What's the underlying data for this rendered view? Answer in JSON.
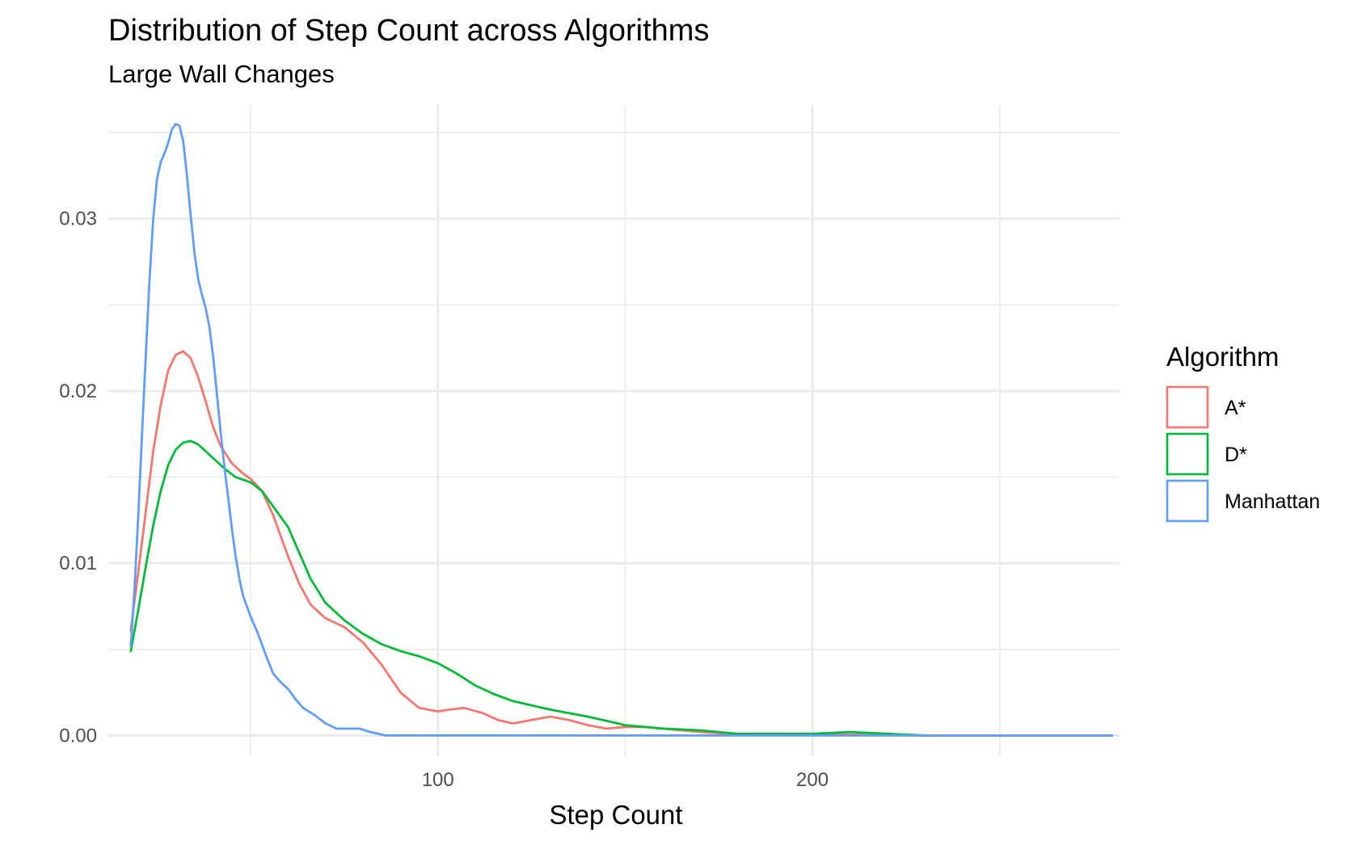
{
  "chart_data": {
    "type": "line",
    "title": "Distribution of Step Count across Algorithms",
    "subtitle": "Large Wall Changes",
    "xlabel": "Step Count",
    "ylabel": "",
    "xlim": [
      12,
      282
    ],
    "ylim": [
      -0.0012,
      0.0366
    ],
    "x_ticks": [
      100,
      200
    ],
    "x_tick_labels": [
      "100",
      "200"
    ],
    "x_minor_ticks": [
      50,
      150,
      250
    ],
    "y_ticks": [
      0.0,
      0.01,
      0.02,
      0.03
    ],
    "y_tick_labels": [
      "0.00",
      "0.01",
      "0.02",
      "0.03"
    ],
    "y_minor_ticks": [
      0.005,
      0.015,
      0.025,
      0.035
    ],
    "grid": true,
    "legend": {
      "title": "Algorithm",
      "position": "right"
    },
    "series": [
      {
        "name": "A*",
        "color": "#F8766D",
        "points": [
          [
            18,
            0.0061
          ],
          [
            20,
            0.0095
          ],
          [
            22,
            0.013
          ],
          [
            24,
            0.0165
          ],
          [
            26,
            0.0192
          ],
          [
            28,
            0.0212
          ],
          [
            30,
            0.0221
          ],
          [
            32,
            0.0223
          ],
          [
            34,
            0.0219
          ],
          [
            36,
            0.0208
          ],
          [
            38,
            0.0194
          ],
          [
            40,
            0.0179
          ],
          [
            42,
            0.0168
          ],
          [
            45,
            0.0158
          ],
          [
            48,
            0.0152
          ],
          [
            50,
            0.0149
          ],
          [
            53,
            0.0142
          ],
          [
            56,
            0.0128
          ],
          [
            58,
            0.0116
          ],
          [
            60,
            0.0104
          ],
          [
            63,
            0.0088
          ],
          [
            66,
            0.0076
          ],
          [
            70,
            0.0068
          ],
          [
            75,
            0.0063
          ],
          [
            80,
            0.0054
          ],
          [
            85,
            0.0041
          ],
          [
            90,
            0.0025
          ],
          [
            95,
            0.0016
          ],
          [
            100,
            0.0014
          ],
          [
            103,
            0.0015
          ],
          [
            107,
            0.0016
          ],
          [
            112,
            0.0013
          ],
          [
            116,
            0.0009
          ],
          [
            120,
            0.0007
          ],
          [
            125,
            0.0009
          ],
          [
            130,
            0.0011
          ],
          [
            135,
            0.0009
          ],
          [
            140,
            0.0006
          ],
          [
            145,
            0.0004
          ],
          [
            150,
            0.0005
          ],
          [
            155,
            0.0005
          ],
          [
            160,
            0.0004
          ],
          [
            165,
            0.0003
          ],
          [
            170,
            0.0002
          ],
          [
            178,
            0.0001
          ],
          [
            190,
            5e-05
          ],
          [
            210,
            5e-05
          ],
          [
            230,
            0.0
          ],
          [
            250,
            0.0
          ],
          [
            270,
            0.0
          ],
          [
            280,
            0.0
          ]
        ]
      },
      {
        "name": "D*",
        "color": "#00BA38",
        "points": [
          [
            18,
            0.0049
          ],
          [
            20,
            0.0073
          ],
          [
            22,
            0.0098
          ],
          [
            24,
            0.0122
          ],
          [
            26,
            0.0142
          ],
          [
            28,
            0.0157
          ],
          [
            30,
            0.0166
          ],
          [
            32,
            0.017
          ],
          [
            34,
            0.0171
          ],
          [
            36,
            0.0169
          ],
          [
            38,
            0.0165
          ],
          [
            40,
            0.0161
          ],
          [
            43,
            0.0155
          ],
          [
            46,
            0.015
          ],
          [
            50,
            0.0147
          ],
          [
            53,
            0.0142
          ],
          [
            56,
            0.0133
          ],
          [
            60,
            0.0121
          ],
          [
            63,
            0.0106
          ],
          [
            66,
            0.0091
          ],
          [
            70,
            0.0077
          ],
          [
            75,
            0.0067
          ],
          [
            80,
            0.0059
          ],
          [
            85,
            0.0053
          ],
          [
            90,
            0.0049
          ],
          [
            95,
            0.0046
          ],
          [
            100,
            0.0042
          ],
          [
            105,
            0.0036
          ],
          [
            110,
            0.0029
          ],
          [
            115,
            0.0024
          ],
          [
            120,
            0.002
          ],
          [
            130,
            0.0015
          ],
          [
            140,
            0.0011
          ],
          [
            150,
            0.0006
          ],
          [
            160,
            0.0004
          ],
          [
            170,
            0.0003
          ],
          [
            180,
            0.0001
          ],
          [
            190,
            0.0001
          ],
          [
            200,
            0.0001
          ],
          [
            210,
            0.0002
          ],
          [
            220,
            0.0001
          ],
          [
            230,
            0.0
          ],
          [
            250,
            0.0
          ],
          [
            270,
            0.0
          ],
          [
            280,
            0.0
          ]
        ]
      },
      {
        "name": "Manhattan",
        "color": "#619CFF",
        "points": [
          [
            18,
            0.0052
          ],
          [
            19,
            0.0085
          ],
          [
            20,
            0.0128
          ],
          [
            21,
            0.0175
          ],
          [
            22,
            0.022
          ],
          [
            23,
            0.0265
          ],
          [
            24,
            0.03
          ],
          [
            25,
            0.0323
          ],
          [
            26,
            0.0333
          ],
          [
            27,
            0.0338
          ],
          [
            28,
            0.0344
          ],
          [
            29,
            0.0352
          ],
          [
            30,
            0.0355
          ],
          [
            31,
            0.0354
          ],
          [
            32,
            0.0345
          ],
          [
            33,
            0.0325
          ],
          [
            34,
            0.0302
          ],
          [
            35,
            0.028
          ],
          [
            36,
            0.0265
          ],
          [
            37,
            0.0256
          ],
          [
            38,
            0.0248
          ],
          [
            39,
            0.0237
          ],
          [
            40,
            0.022
          ],
          [
            41,
            0.0198
          ],
          [
            42,
            0.0176
          ],
          [
            43,
            0.0156
          ],
          [
            44,
            0.0138
          ],
          [
            45,
            0.012
          ],
          [
            46,
            0.0104
          ],
          [
            47,
            0.0091
          ],
          [
            48,
            0.0081
          ],
          [
            50,
            0.0069
          ],
          [
            52,
            0.0059
          ],
          [
            54,
            0.0047
          ],
          [
            56,
            0.0036
          ],
          [
            58,
            0.0031
          ],
          [
            60,
            0.0027
          ],
          [
            62,
            0.0021
          ],
          [
            64,
            0.0016
          ],
          [
            67,
            0.0012
          ],
          [
            70,
            0.0007
          ],
          [
            73,
            0.0004
          ],
          [
            76,
            0.0004
          ],
          [
            79,
            0.0004
          ],
          [
            82,
            0.0002
          ],
          [
            86,
            0.0
          ],
          [
            90,
            0.0
          ],
          [
            100,
            0.0
          ],
          [
            150,
            0.0
          ],
          [
            200,
            0.0
          ],
          [
            250,
            0.0
          ],
          [
            280,
            0.0
          ]
        ]
      }
    ]
  }
}
